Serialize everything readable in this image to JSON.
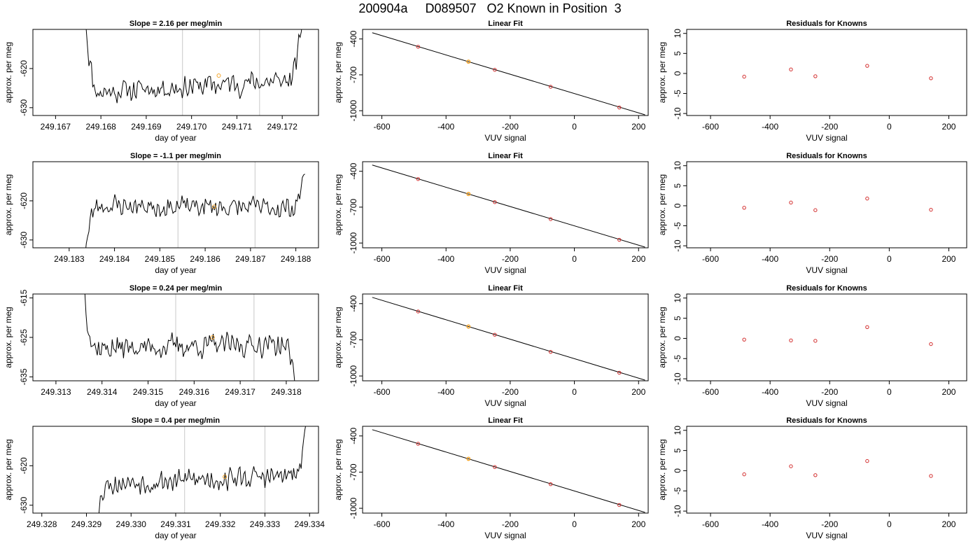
{
  "title": "200904a     D089507   O2 Known in Position  3",
  "colors": {
    "trace": "#000000",
    "highlight": "#f4a52a",
    "residual": "#d32f2f",
    "vline": "#c8c8c8"
  },
  "chart_data": [
    {
      "row": 1,
      "panels": [
        {
          "type": "line",
          "title": "Slope =  2.16  per meg/min",
          "xlabel": "day of year",
          "ylabel": "approx. per meg",
          "xlim": [
            249.1665,
            249.1728
          ],
          "ylim": [
            -632,
            -610
          ],
          "xticks": [
            249.167,
            249.168,
            249.169,
            249.17,
            249.171,
            249.172
          ],
          "xtick_labels": [
            "249.167",
            "249.168",
            "249.169",
            "249.170",
            "249.171",
            "249.172"
          ],
          "yticks": [
            -620,
            -630
          ],
          "ytick_labels": [
            "-620",
            "-630"
          ],
          "vlines": [
            249.1698,
            249.1715
          ],
          "highlight": {
            "x": 249.1706,
            "y": -621.8
          },
          "series": {
            "start": 249.16765,
            "end": 249.17245,
            "base": -624.5,
            "slope": 0.85,
            "amp": 2.2,
            "spike_start": 20,
            "spike_end": 17,
            "seed": 11
          }
        },
        {
          "type": "line",
          "title": "Linear Fit",
          "xlabel": "VUV signal",
          "ylabel": "approx. per meg",
          "xlim": [
            -660,
            230
          ],
          "ylim": [
            -1040,
            -320
          ],
          "xticks": [
            -600,
            -400,
            -200,
            0,
            200
          ],
          "xtick_labels": [
            "-600",
            "-400",
            "-200",
            "0",
            "200"
          ],
          "yticks": [
            -400,
            -700,
            -1000
          ],
          "ytick_labels": [
            "-400",
            "-700",
            "-1000"
          ],
          "fit_line": {
            "x": [
              -630,
              220
            ],
            "y": [
              -348,
              -1034
            ]
          },
          "points": {
            "x": [
              -487,
              -330,
              -248,
              -74,
              140
            ],
            "y": [
              -465,
              -590,
              -658,
              -800,
              -973
            ]
          },
          "highlight_index": 1
        },
        {
          "type": "scatter",
          "title": "Residuals for Knowns",
          "xlabel": "VUV signal",
          "ylabel": "approx. per meg",
          "xlim": [
            -680,
            260
          ],
          "ylim": [
            -10.5,
            11
          ],
          "xticks": [
            -600,
            -400,
            -200,
            0,
            200
          ],
          "xtick_labels": [
            "-600",
            "-400",
            "-200",
            "0",
            "200"
          ],
          "yticks": [
            10,
            5,
            0,
            -5,
            -10
          ],
          "ytick_labels": [
            "10",
            "5",
            "0",
            "-5",
            "-10"
          ],
          "points": {
            "x": [
              -487,
              -330,
              -248,
              -74,
              140
            ],
            "y": [
              -0.8,
              1.0,
              -0.7,
              1.9,
              -1.2
            ]
          }
        }
      ]
    },
    {
      "row": 2,
      "panels": [
        {
          "type": "line",
          "title": "Slope =  -1.1  per meg/min",
          "xlabel": "day of year",
          "ylabel": "approx. per meg",
          "xlim": [
            249.1822,
            249.1885
          ],
          "ylim": [
            -632,
            -610
          ],
          "xticks": [
            249.183,
            249.184,
            249.185,
            249.186,
            249.187,
            249.188
          ],
          "xtick_labels": [
            "249.183",
            "249.184",
            "249.185",
            "249.186",
            "249.187",
            "249.188"
          ],
          "yticks": [
            -620,
            -630
          ],
          "ytick_labels": [
            "-620",
            "-630"
          ],
          "vlines": [
            249.1854,
            249.1871
          ],
          "highlight": {
            "x": 249.1862,
            "y": -621.5
          },
          "series": {
            "start": 249.18335,
            "end": 249.1882,
            "base": -621.5,
            "slope": -0.2,
            "amp": 2.0,
            "spike_start": -12,
            "spike_end": 10,
            "seed": 23
          }
        },
        {
          "type": "line",
          "title": "Linear Fit",
          "xlabel": "VUV signal",
          "ylabel": "approx. per meg",
          "xlim": [
            -660,
            230
          ],
          "ylim": [
            -1040,
            -320
          ],
          "xticks": [
            -600,
            -400,
            -200,
            0,
            200
          ],
          "xtick_labels": [
            "-600",
            "-400",
            "-200",
            "0",
            "200"
          ],
          "yticks": [
            -400,
            -700,
            -1000
          ],
          "ytick_labels": [
            "-400",
            "-700",
            "-1000"
          ],
          "fit_line": {
            "x": [
              -630,
              220
            ],
            "y": [
              -348,
              -1034
            ]
          },
          "points": {
            "x": [
              -487,
              -330,
              -248,
              -74,
              140
            ],
            "y": [
              -465,
              -590,
              -658,
              -800,
              -973
            ]
          },
          "highlight_index": 1
        },
        {
          "type": "scatter",
          "title": "Residuals for Knowns",
          "xlabel": "VUV signal",
          "ylabel": "approx. per meg",
          "xlim": [
            -680,
            260
          ],
          "ylim": [
            -10.5,
            11
          ],
          "xticks": [
            -600,
            -400,
            -200,
            0,
            200
          ],
          "xtick_labels": [
            "-600",
            "-400",
            "-200",
            "0",
            "200"
          ],
          "yticks": [
            10,
            5,
            0,
            -5,
            -10
          ],
          "ytick_labels": [
            "10",
            "5",
            "0",
            "-5",
            "-10"
          ],
          "points": {
            "x": [
              -487,
              -330,
              -248,
              -74,
              140
            ],
            "y": [
              -0.5,
              0.8,
              -1.1,
              1.8,
              -1.0
            ]
          }
        }
      ]
    },
    {
      "row": 3,
      "panels": [
        {
          "type": "line",
          "title": "Slope =  0.24  per meg/min",
          "xlabel": "day of year",
          "ylabel": "approx. per meg",
          "xlim": [
            249.3125,
            249.3187
          ],
          "ylim": [
            -636,
            -614
          ],
          "xticks": [
            249.313,
            249.314,
            249.315,
            249.316,
            249.317,
            249.318
          ],
          "xtick_labels": [
            "249.313",
            "249.314",
            "249.315",
            "249.316",
            "249.317",
            "249.318"
          ],
          "yticks": [
            -615,
            -625,
            -635
          ],
          "ytick_labels": [
            "-615",
            "-625",
            "-635"
          ],
          "vlines": [
            249.3156,
            249.3173
          ],
          "highlight": {
            "x": 249.3164,
            "y": -625.0
          },
          "series": {
            "start": 249.3136,
            "end": 249.3182,
            "base": -627.2,
            "slope": 0.3,
            "amp": 2.2,
            "spike_start": 16,
            "spike_end": -10,
            "seed": 37
          }
        },
        {
          "type": "line",
          "title": "Linear Fit",
          "xlabel": "VUV signal",
          "ylabel": "approx. per meg",
          "xlim": [
            -660,
            230
          ],
          "ylim": [
            -1040,
            -320
          ],
          "xticks": [
            -600,
            -400,
            -200,
            0,
            200
          ],
          "xtick_labels": [
            "-600",
            "-400",
            "-200",
            "0",
            "200"
          ],
          "yticks": [
            -400,
            -700,
            -1000
          ],
          "ytick_labels": [
            "-400",
            "-700",
            "-1000"
          ],
          "fit_line": {
            "x": [
              -630,
              220
            ],
            "y": [
              -348,
              -1034
            ]
          },
          "points": {
            "x": [
              -487,
              -330,
              -248,
              -74,
              140
            ],
            "y": [
              -465,
              -590,
              -658,
              -800,
              -973
            ]
          },
          "highlight_index": 1
        },
        {
          "type": "scatter",
          "title": "Residuals for Knowns",
          "xlabel": "VUV signal",
          "ylabel": "approx. per meg",
          "xlim": [
            -680,
            260
          ],
          "ylim": [
            -10.5,
            11
          ],
          "xticks": [
            -600,
            -400,
            -200,
            0,
            200
          ],
          "xtick_labels": [
            "-600",
            "-400",
            "-200",
            "0",
            "200"
          ],
          "yticks": [
            10,
            5,
            0,
            -5,
            -10
          ],
          "ytick_labels": [
            "10",
            "5",
            "0",
            "-5",
            "-10"
          ],
          "points": {
            "x": [
              -487,
              -330,
              -248,
              -74,
              140
            ],
            "y": [
              -0.3,
              -0.5,
              -0.6,
              2.8,
              -1.4
            ]
          }
        }
      ]
    },
    {
      "row": 4,
      "panels": [
        {
          "type": "line",
          "title": "Slope =  0.4  per meg/min",
          "xlabel": "day of year",
          "ylabel": "approx. per meg",
          "xlim": [
            249.3278,
            249.3342
          ],
          "ylim": [
            -632,
            -610
          ],
          "xticks": [
            249.328,
            249.329,
            249.33,
            249.331,
            249.332,
            249.333,
            249.334
          ],
          "xtick_labels": [
            "249.328",
            "249.329",
            "249.330",
            "249.331",
            "249.332",
            "249.333",
            "249.334"
          ],
          "yticks": [
            -620,
            -630
          ],
          "ytick_labels": [
            "-620",
            "-630"
          ],
          "vlines": [
            249.3312,
            249.333
          ],
          "highlight": {
            "x": 249.3321,
            "y": -622.8
          },
          "series": {
            "start": 249.3292,
            "end": 249.33395,
            "base": -623.5,
            "slope": 0.5,
            "amp": 2.1,
            "spike_start": -12,
            "spike_end": 14,
            "seed": 53
          }
        },
        {
          "type": "line",
          "title": "Linear Fit",
          "xlabel": "VUV signal",
          "ylabel": "approx. per meg",
          "xlim": [
            -660,
            230
          ],
          "ylim": [
            -1040,
            -320
          ],
          "xticks": [
            -600,
            -400,
            -200,
            0,
            200
          ],
          "xtick_labels": [
            "-600",
            "-400",
            "-200",
            "0",
            "200"
          ],
          "yticks": [
            -400,
            -700,
            -1000
          ],
          "ytick_labels": [
            "-400",
            "-700",
            "-1000"
          ],
          "fit_line": {
            "x": [
              -630,
              220
            ],
            "y": [
              -348,
              -1034
            ]
          },
          "points": {
            "x": [
              -487,
              -330,
              -248,
              -74,
              140
            ],
            "y": [
              -465,
              -590,
              -658,
              -800,
              -973
            ]
          },
          "highlight_index": 1
        },
        {
          "type": "scatter",
          "title": "Residuals for Knowns",
          "xlabel": "VUV signal",
          "ylabel": "approx. per meg",
          "xlim": [
            -680,
            260
          ],
          "ylim": [
            -10.5,
            11
          ],
          "xticks": [
            -600,
            -400,
            -200,
            0,
            200
          ],
          "xtick_labels": [
            "-600",
            "-400",
            "-200",
            "0",
            "200"
          ],
          "yticks": [
            10,
            5,
            0,
            -5,
            -10
          ],
          "ytick_labels": [
            "10",
            "5",
            "0",
            "-5",
            "-10"
          ],
          "points": {
            "x": [
              -487,
              -330,
              -248,
              -74,
              140
            ],
            "y": [
              -0.9,
              1.1,
              -1.1,
              2.4,
              -1.3
            ]
          }
        }
      ]
    }
  ]
}
